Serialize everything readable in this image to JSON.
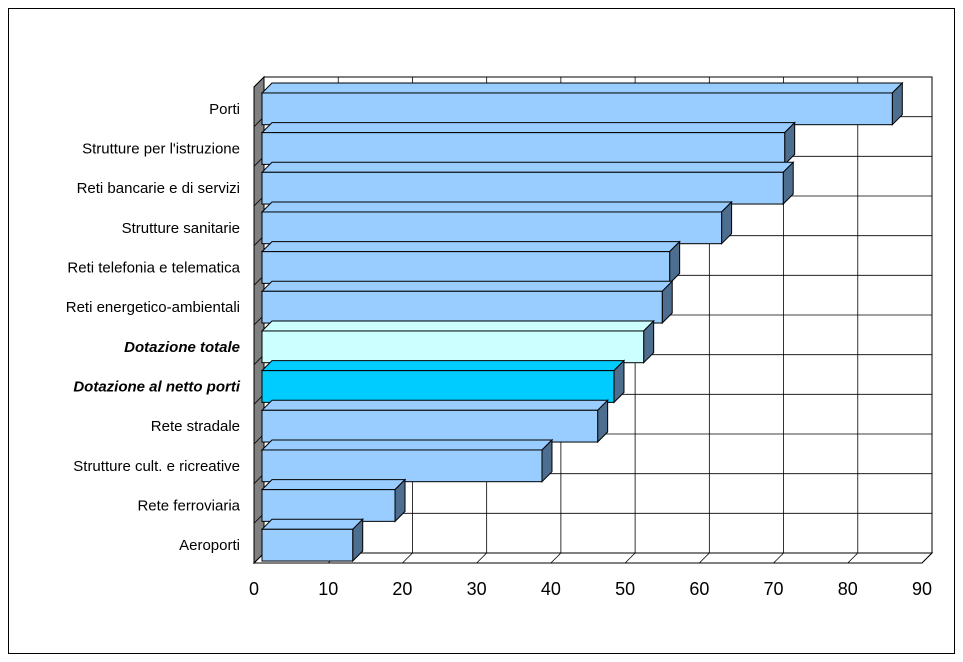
{
  "chart_data": {
    "type": "bar",
    "orientation": "horizontal",
    "title": "",
    "xlabel": "",
    "ylabel": "",
    "xlim": [
      0,
      90
    ],
    "x_ticks": [
      0,
      10,
      20,
      30,
      40,
      50,
      60,
      70,
      80,
      90
    ],
    "grid": true,
    "legend": "none",
    "categories": [
      "Porti",
      "Strutture per l'istruzione",
      "Reti bancarie e di servizi",
      "Strutture sanitarie",
      "Reti telefonia e telematica",
      "Reti energetico-ambientali",
      "Dotazione totale",
      "Dotazione al netto porti",
      "Rete stradale",
      "Strutture cult. e ricreative",
      "Rete ferroviaria",
      "Aeroporti"
    ],
    "values": [
      86,
      71.5,
      71.3,
      63,
      56,
      55,
      52.5,
      48.5,
      46.3,
      38.8,
      19,
      13.3
    ],
    "highlighted_categories": [
      "Dotazione totale",
      "Dotazione al netto porti"
    ],
    "colors": {
      "default": "#99ccff",
      "Dotazione totale": "#ccffff",
      "Dotazione al netto porti": "#00ccff",
      "bar_edge": "#000000",
      "bar_side": "#4d6e8f",
      "floor": "#808080"
    }
  }
}
